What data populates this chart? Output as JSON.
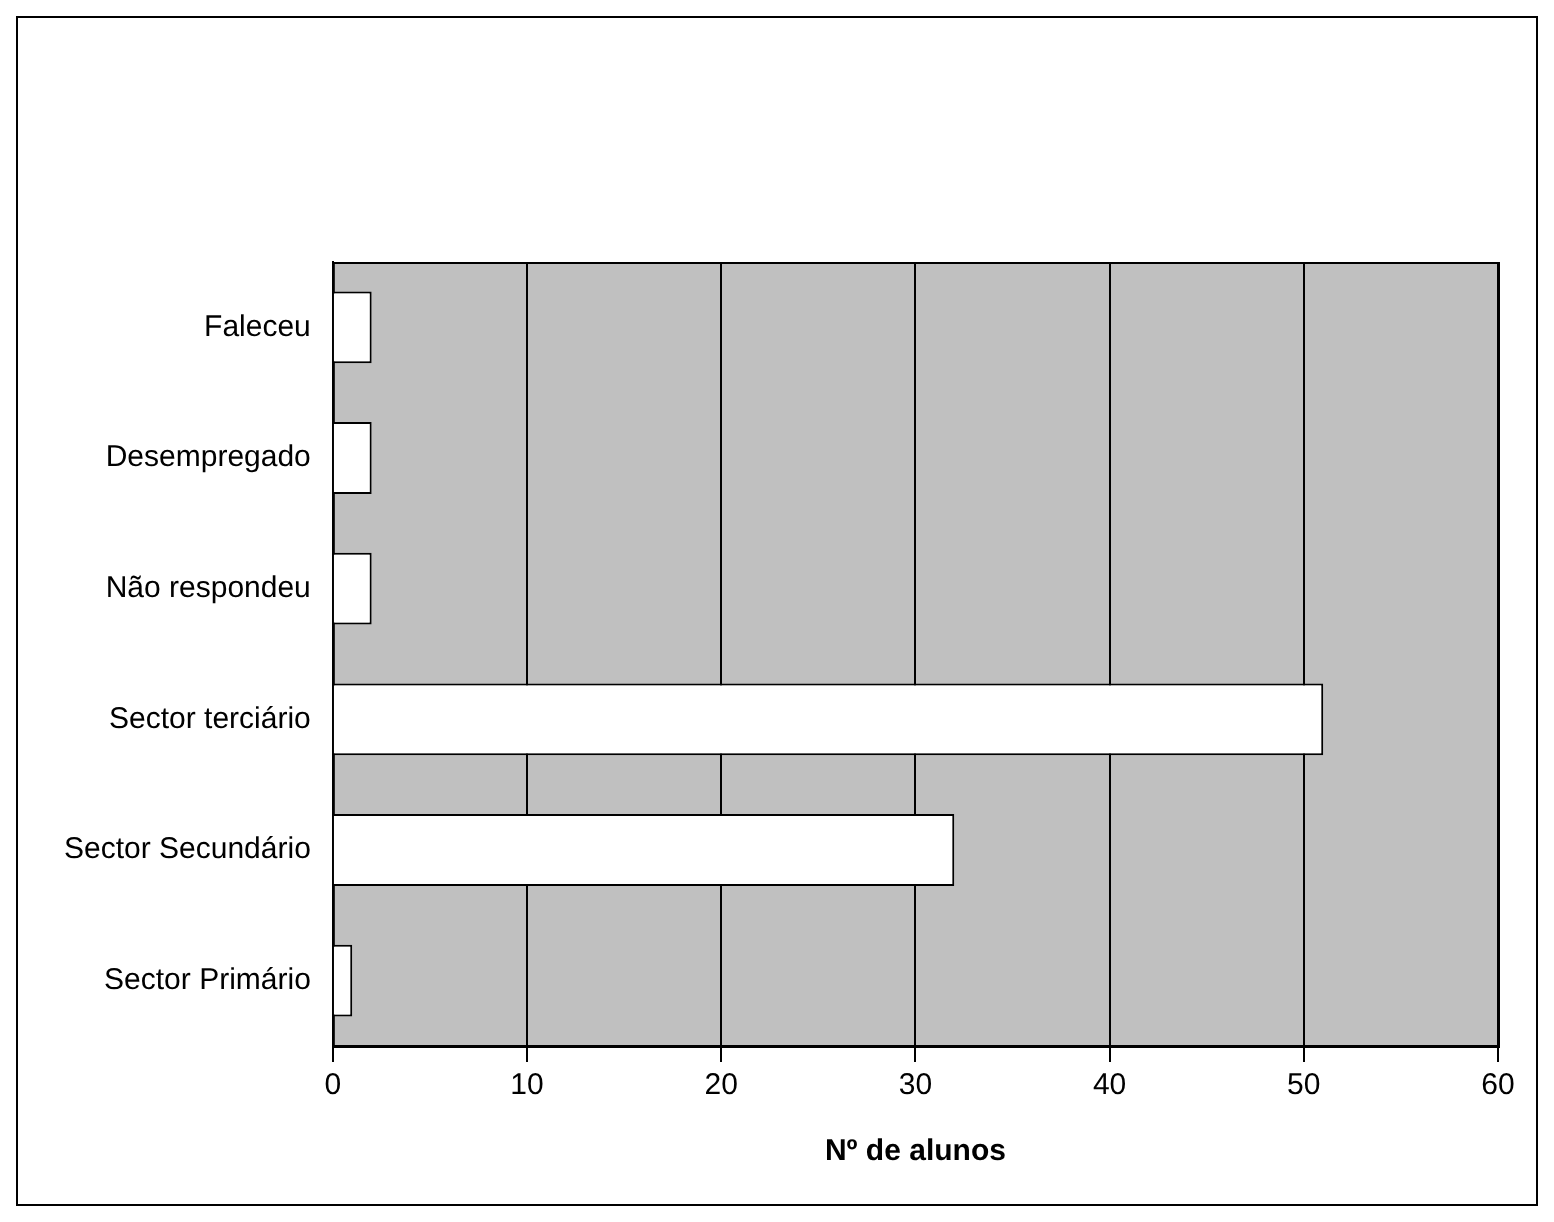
{
  "chart_data": {
    "type": "bar",
    "orientation": "horizontal",
    "categories": [
      "Faleceu",
      "Desempregado",
      "Não respondeu",
      "Sector terciário",
      "Sector Secundário",
      "Sector Primário"
    ],
    "values": [
      2,
      2,
      2,
      51,
      32,
      1
    ],
    "color": "#ffffff",
    "xlabel": "Nº de alunos",
    "xlim": [
      0,
      60
    ],
    "xticks": [
      0,
      10,
      20,
      30,
      40,
      50,
      60
    ],
    "grid": "x"
  }
}
